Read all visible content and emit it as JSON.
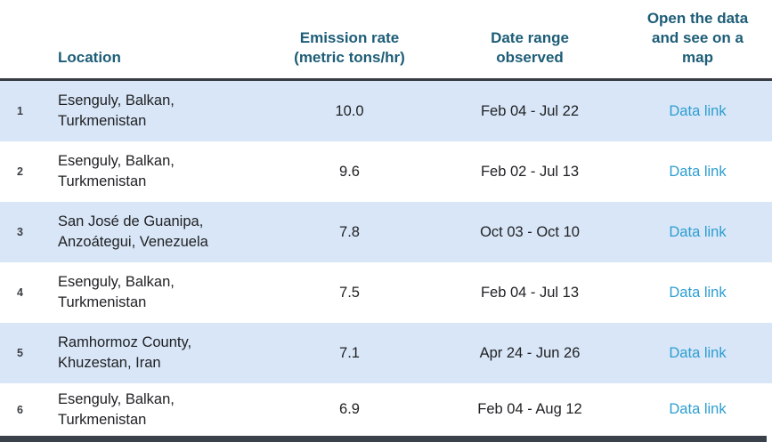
{
  "colors": {
    "header_text": "#1d5d77",
    "alt_row_background": "#d8e6f7",
    "divider": "#373c44",
    "body_text": "#202124",
    "link": "#2d9ed1",
    "row_number": "#3c4043"
  },
  "table": {
    "headers": {
      "location": "Location",
      "rate": "Emission rate (metric tons/hr)",
      "date": "Date range observed",
      "link": "Open the data and see on a map"
    },
    "rows": [
      {
        "rank": "1",
        "location": "Esenguly, Balkan, Turkmenistan",
        "rate": "10.0",
        "date": "Feb 04 - Jul 22",
        "link": "Data link"
      },
      {
        "rank": "2",
        "location": "Esenguly, Balkan, Turkmenistan",
        "rate": "9.6",
        "date": "Feb 02 - Jul 13",
        "link": "Data link"
      },
      {
        "rank": "3",
        "location": "San José de Guanipa, Anzoátegui, Venezuela",
        "rate": "7.8",
        "date": "Oct 03 - Oct 10",
        "link": "Data link"
      },
      {
        "rank": "4",
        "location": "Esenguly, Balkan, Turkmenistan",
        "rate": "7.5",
        "date": "Feb 04 - Jul 13",
        "link": "Data link"
      },
      {
        "rank": "5",
        "location": "Ramhormoz County, Khuzestan, Iran",
        "rate": "7.1",
        "date": "Apr 24 - Jun 26",
        "link": "Data link"
      },
      {
        "rank": "6",
        "location": "Esenguly, Balkan, Turkmenistan",
        "rate": "6.9",
        "date": "Feb 04 - Aug 12",
        "link": "Data link"
      }
    ]
  },
  "chart_data": {
    "type": "table",
    "columns": [
      "Location",
      "Emission rate (metric tons/hr)",
      "Date range observed",
      "Open the data and see on a map"
    ],
    "rows": [
      [
        "Esenguly, Balkan, Turkmenistan",
        10.0,
        "Feb 04 - Jul 22",
        "Data link"
      ],
      [
        "Esenguly, Balkan, Turkmenistan",
        9.6,
        "Feb 02 - Jul 13",
        "Data link"
      ],
      [
        "San José de Guanipa, Anzoátegui, Venezuela",
        7.8,
        "Oct 03 - Oct 10",
        "Data link"
      ],
      [
        "Esenguly, Balkan, Turkmenistan",
        7.5,
        "Feb 04 - Jul 13",
        "Data link"
      ],
      [
        "Ramhormoz County, Khuzestan, Iran",
        7.1,
        "Apr 24 - Jun 26",
        "Data link"
      ],
      [
        "Esenguly, Balkan, Turkmenistan",
        6.9,
        "Feb 04 - Aug 12",
        "Data link"
      ]
    ],
    "layout_hints": {
      "alternating_row_shading": true,
      "numbered_rows": true
    }
  }
}
